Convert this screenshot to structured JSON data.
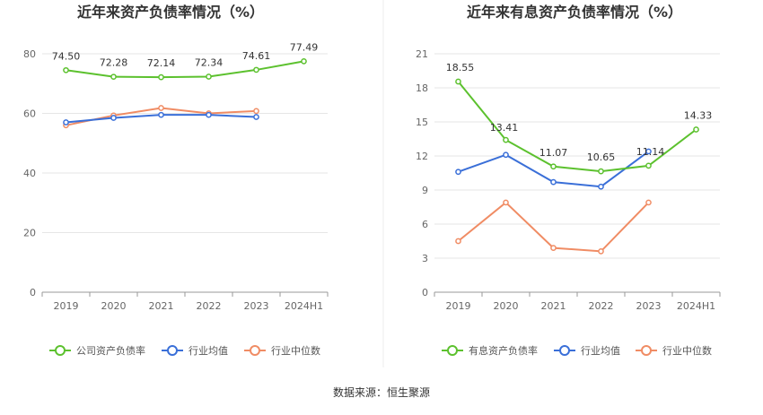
{
  "source_text": "数据来源：恒生聚源",
  "chart_data": [
    {
      "type": "line",
      "title": "近年来资产负债率情况（%）",
      "categories": [
        "2019",
        "2020",
        "2021",
        "2022",
        "2023",
        "2024H1"
      ],
      "ylim": [
        0,
        80
      ],
      "yticks": [
        0,
        20,
        40,
        60,
        80
      ],
      "grid": true,
      "legend_position": "bottom",
      "series": [
        {
          "name": "公司资产负债率",
          "color": "#5cc12e",
          "values": [
            74.5,
            72.28,
            72.14,
            72.34,
            74.61,
            77.49
          ],
          "labels": [
            "74.50",
            "72.28",
            "72.14",
            "72.34",
            "74.61",
            "77.49"
          ]
        },
        {
          "name": "行业均值",
          "color": "#3a6fd8",
          "values": [
            57.0,
            58.5,
            59.5,
            59.5,
            58.8,
            null
          ]
        },
        {
          "name": "行业中位数",
          "color": "#f08c64",
          "values": [
            56.0,
            59.3,
            61.8,
            60.0,
            60.8,
            null
          ]
        }
      ]
    },
    {
      "type": "line",
      "title": "近年来有息资产负债率情况（%）",
      "categories": [
        "2019",
        "2020",
        "2021",
        "2022",
        "2023",
        "2024H1"
      ],
      "ylim": [
        0,
        21
      ],
      "yticks": [
        0,
        3,
        6,
        9,
        12,
        15,
        18,
        21
      ],
      "grid": true,
      "legend_position": "bottom",
      "series": [
        {
          "name": "有息资产负债率",
          "color": "#5cc12e",
          "values": [
            18.55,
            13.41,
            11.07,
            10.65,
            11.14,
            14.33
          ],
          "labels": [
            "18.55",
            "13.41",
            "11.07",
            "10.65",
            "11.14",
            "14.33"
          ]
        },
        {
          "name": "行业均值",
          "color": "#3a6fd8",
          "values": [
            10.6,
            12.1,
            9.7,
            9.3,
            12.4,
            null
          ]
        },
        {
          "name": "行业中位数",
          "color": "#f08c64",
          "values": [
            4.5,
            7.9,
            3.9,
            3.6,
            7.9,
            null
          ]
        }
      ]
    }
  ]
}
